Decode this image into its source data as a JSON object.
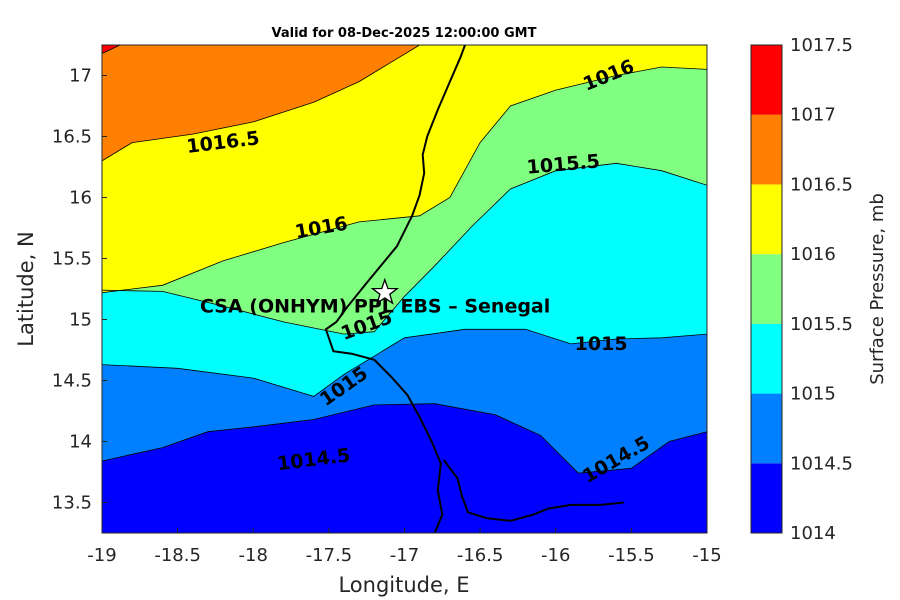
{
  "chart_data": {
    "type": "contour",
    "title": "Valid for 08-Dec-2025 12:00:00 GMT",
    "xlabel": "Longitude, E",
    "ylabel": "Latitude, N",
    "xlim": [
      -19,
      -15
    ],
    "ylim": [
      13.25,
      17.25
    ],
    "x_ticks": [
      "-19",
      "-18.5",
      "-18",
      "-17.5",
      "-17",
      "-16.5",
      "-16",
      "-15.5",
      "-15"
    ],
    "y_ticks": [
      "13.5",
      "14",
      "14.5",
      "15",
      "15.5",
      "16",
      "16.5",
      "17"
    ],
    "colorbar": {
      "label": "Surface Pressure, mb",
      "levels": [
        1014,
        1014.5,
        1015,
        1015.5,
        1016,
        1016.5,
        1017,
        1017.5
      ],
      "tick_labels": [
        "1014",
        "1014.5",
        "1015",
        "1015.5",
        "1016",
        "1016.5",
        "1017",
        "1017.5"
      ],
      "colors": [
        "#0000ff",
        "#0080ff",
        "#00ffff",
        "#80ff80",
        "#ffff00",
        "#ff8000",
        "#ff0000",
        "#800000"
      ]
    },
    "contour_labels": [
      {
        "text": "1016.5",
        "lon": -18.2,
        "lat": 16.45,
        "angle": -7
      },
      {
        "text": "1016",
        "lon": -15.65,
        "lat": 17.0,
        "angle": -22
      },
      {
        "text": "1015.5",
        "lon": -15.95,
        "lat": 16.27,
        "angle": -5
      },
      {
        "text": "1016",
        "lon": -17.55,
        "lat": 15.75,
        "angle": -10
      },
      {
        "text": "1015",
        "lon": -17.25,
        "lat": 14.95,
        "angle": -20
      },
      {
        "text": "1015",
        "lon": -15.7,
        "lat": 14.8,
        "angle": 0
      },
      {
        "text": "1015",
        "lon": -17.4,
        "lat": 14.45,
        "angle": -35
      },
      {
        "text": "1014.5",
        "lon": -17.6,
        "lat": 13.85,
        "angle": -7
      },
      {
        "text": "1014.5",
        "lon": -15.6,
        "lat": 13.85,
        "angle": -30
      }
    ],
    "station": {
      "name": "CSA (ONHYM) PPL EBS  – Senegal",
      "lon": -17.13,
      "lat": 15.22,
      "marker": "star"
    },
    "contours": {
      "1014.5": [
        [
          -19,
          13.84
        ],
        [
          -18.6,
          13.95
        ],
        [
          -18.3,
          14.08
        ],
        [
          -18.0,
          14.12
        ],
        [
          -17.6,
          14.18
        ],
        [
          -17.2,
          14.3
        ],
        [
          -16.8,
          14.31
        ],
        [
          -16.4,
          14.22
        ],
        [
          -16.1,
          14.05
        ],
        [
          -15.85,
          13.74
        ],
        [
          -15.5,
          13.78
        ],
        [
          -15.25,
          14.0
        ],
        [
          -15,
          14.08
        ]
      ],
      "1015": [
        [
          -19,
          14.63
        ],
        [
          -18.5,
          14.6
        ],
        [
          -18.0,
          14.52
        ],
        [
          -17.6,
          14.37
        ],
        [
          -17.4,
          14.55
        ],
        [
          -17.0,
          14.85
        ],
        [
          -16.6,
          14.92
        ],
        [
          -16.2,
          14.92
        ],
        [
          -15.9,
          14.8
        ],
        [
          -15.6,
          14.84
        ],
        [
          -15.3,
          14.85
        ],
        [
          -15,
          14.88
        ]
      ],
      "1015.5": [
        [
          -19,
          15.24
        ],
        [
          -18.6,
          15.23
        ],
        [
          -18.2,
          15.11
        ],
        [
          -17.8,
          14.98
        ],
        [
          -17.4,
          14.88
        ],
        [
          -17.2,
          14.9
        ],
        [
          -17.0,
          15.19
        ],
        [
          -16.8,
          15.44
        ],
        [
          -16.55,
          15.77
        ],
        [
          -16.3,
          16.07
        ],
        [
          -16.0,
          16.22
        ],
        [
          -15.6,
          16.28
        ],
        [
          -15.3,
          16.22
        ],
        [
          -15,
          16.1
        ]
      ],
      "1016": [
        [
          -19,
          15.22
        ],
        [
          -18.6,
          15.28
        ],
        [
          -18.2,
          15.48
        ],
        [
          -17.8,
          15.63
        ],
        [
          -17.3,
          15.8
        ],
        [
          -16.9,
          15.85
        ],
        [
          -16.7,
          16.0
        ],
        [
          -16.5,
          16.45
        ],
        [
          -16.3,
          16.75
        ],
        [
          -16.0,
          16.88
        ],
        [
          -15.6,
          17.0
        ],
        [
          -15.3,
          17.07
        ],
        [
          -15,
          17.05
        ]
      ],
      "1016.5": [
        [
          -19,
          16.3
        ],
        [
          -18.8,
          16.45
        ],
        [
          -18.4,
          16.52
        ],
        [
          -18.0,
          16.62
        ],
        [
          -17.6,
          16.78
        ],
        [
          -17.3,
          16.95
        ],
        [
          -17.1,
          17.1
        ],
        [
          -16.9,
          17.25
        ]
      ],
      "1017": [
        [
          -19,
          17.18
        ],
        [
          -18.88,
          17.25
        ]
      ]
    },
    "coastline": [
      [
        -16.6,
        17.25
      ],
      [
        -16.63,
        17.15
      ],
      [
        -16.7,
        16.95
      ],
      [
        -16.78,
        16.72
      ],
      [
        -16.85,
        16.5
      ],
      [
        -16.88,
        16.35
      ],
      [
        -16.87,
        16.2
      ],
      [
        -16.9,
        16.02
      ],
      [
        -16.95,
        15.85
      ],
      [
        -17.05,
        15.6
      ],
      [
        -17.25,
        15.3
      ],
      [
        -17.38,
        15.1
      ],
      [
        -17.45,
        14.98
      ],
      [
        -17.52,
        14.92
      ],
      [
        -17.47,
        14.74
      ],
      [
        -17.35,
        14.72
      ],
      [
        -17.2,
        14.67
      ],
      [
        -17.08,
        14.52
      ],
      [
        -16.98,
        14.38
      ],
      [
        -16.9,
        14.2
      ],
      [
        -16.82,
        14.0
      ],
      [
        -16.76,
        13.82
      ],
      [
        -16.78,
        13.6
      ],
      [
        -16.75,
        13.4
      ],
      [
        -16.8,
        13.25
      ]
    ],
    "river": [
      [
        -16.74,
        13.85
      ],
      [
        -16.7,
        13.78
      ],
      [
        -16.65,
        13.7
      ],
      [
        -16.62,
        13.55
      ],
      [
        -16.58,
        13.42
      ],
      [
        -16.45,
        13.37
      ],
      [
        -16.3,
        13.35
      ],
      [
        -16.15,
        13.4
      ],
      [
        -16.05,
        13.45
      ],
      [
        -15.9,
        13.48
      ],
      [
        -15.7,
        13.48
      ],
      [
        -15.55,
        13.5
      ]
    ]
  }
}
